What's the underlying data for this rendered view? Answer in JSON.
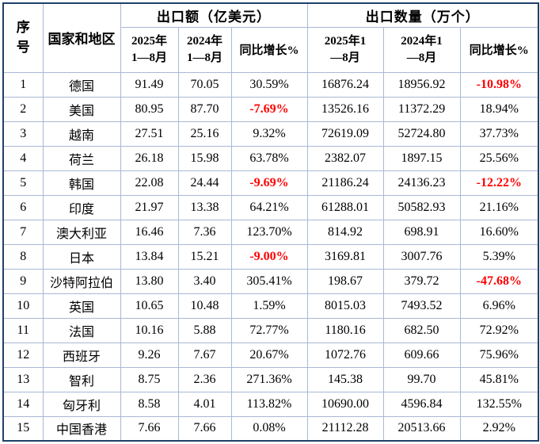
{
  "colors": {
    "outer_border": "#1f4068",
    "grid_line": "#a9b8d6",
    "text": "#000000",
    "negative_value": "#ff0000",
    "background": "#ffffff"
  },
  "table": {
    "header": {
      "serial": "序号",
      "country": "国家和地区",
      "group_export_value": "出口额（亿美元）",
      "group_export_quantity": "出口数量（万个）",
      "value_2025": [
        "2025年",
        "1—8月"
      ],
      "value_2024": [
        "2024年",
        "1—8月"
      ],
      "value_growth": "同比增长%",
      "qty_2025": [
        "2025年1",
        "—8月"
      ],
      "qty_2024": [
        "2024年1",
        "—8月"
      ],
      "qty_growth": "同比增长%"
    },
    "rows": [
      {
        "no": "1",
        "country": "德国",
        "values": [
          "91.49",
          "70.05",
          "30.59%",
          "16876.24",
          "18956.92",
          "-10.98%"
        ],
        "red": [
          5
        ]
      },
      {
        "no": "2",
        "country": "美国",
        "values": [
          "80.95",
          "87.70",
          "-7.69%",
          "13526.16",
          "11372.29",
          "18.94%"
        ],
        "red": [
          2
        ]
      },
      {
        "no": "3",
        "country": "越南",
        "values": [
          "27.51",
          "25.16",
          "9.32%",
          "72619.09",
          "52724.80",
          "37.73%"
        ],
        "red": []
      },
      {
        "no": "4",
        "country": "荷兰",
        "values": [
          "26.18",
          "15.98",
          "63.78%",
          "2382.07",
          "1897.15",
          "25.56%"
        ],
        "red": []
      },
      {
        "no": "5",
        "country": "韩国",
        "values": [
          "22.08",
          "24.44",
          "-9.69%",
          "21186.24",
          "24136.23",
          "-12.22%"
        ],
        "red": [
          2,
          5
        ]
      },
      {
        "no": "6",
        "country": "印度",
        "values": [
          "21.97",
          "13.38",
          "64.21%",
          "61288.01",
          "50582.93",
          "21.16%"
        ],
        "red": []
      },
      {
        "no": "7",
        "country": "澳大利亚",
        "values": [
          "16.46",
          "7.36",
          "123.70%",
          "814.92",
          "698.91",
          "16.60%"
        ],
        "red": []
      },
      {
        "no": "8",
        "country": "日本",
        "values": [
          "13.84",
          "15.21",
          "-9.00%",
          "3169.81",
          "3007.76",
          "5.39%"
        ],
        "red": [
          2
        ]
      },
      {
        "no": "9",
        "country": "沙特阿拉伯",
        "values": [
          "13.80",
          "3.40",
          "305.41%",
          "198.67",
          "379.72",
          "-47.68%"
        ],
        "red": [
          5
        ]
      },
      {
        "no": "10",
        "country": "英国",
        "values": [
          "10.65",
          "10.48",
          "1.59%",
          "8015.03",
          "7493.52",
          "6.96%"
        ],
        "red": []
      },
      {
        "no": "11",
        "country": "法国",
        "values": [
          "10.16",
          "5.88",
          "72.77%",
          "1180.16",
          "682.50",
          "72.92%"
        ],
        "red": []
      },
      {
        "no": "12",
        "country": "西班牙",
        "values": [
          "9.26",
          "7.67",
          "20.67%",
          "1072.76",
          "609.66",
          "75.96%"
        ],
        "red": []
      },
      {
        "no": "13",
        "country": "智利",
        "values": [
          "8.75",
          "2.36",
          "271.36%",
          "145.38",
          "99.70",
          "45.81%"
        ],
        "red": []
      },
      {
        "no": "14",
        "country": "匈牙利",
        "values": [
          "8.58",
          "4.01",
          "113.82%",
          "10690.00",
          "4596.84",
          "132.55%"
        ],
        "red": []
      },
      {
        "no": "15",
        "country": "中国香港",
        "values": [
          "7.66",
          "7.66",
          "0.08%",
          "21112.28",
          "20513.66",
          "2.92%"
        ],
        "red": []
      }
    ]
  }
}
